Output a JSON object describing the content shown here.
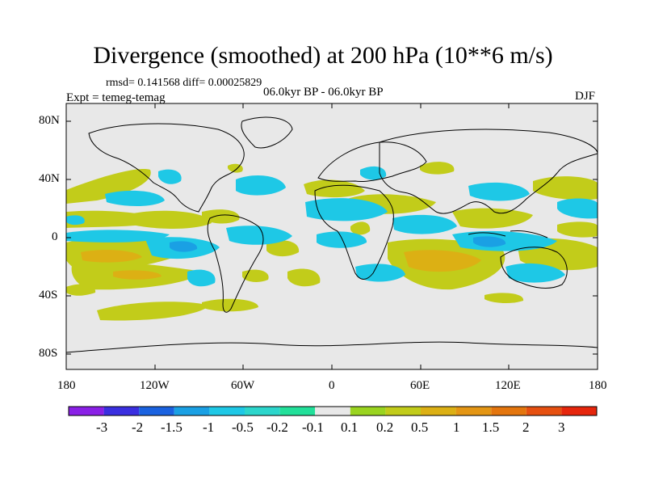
{
  "title": "Divergence (smoothed) at 200 hPa (10**6 m/s)",
  "stats": "rmsd= 0.141568 diff= 0.00025829",
  "experiment": "Expt = temeg-temag",
  "period": "06.0kyr BP - 06.0kyr BP",
  "season": "DJF",
  "map": {
    "lat_ticks": [
      "80N",
      "40N",
      "0",
      "40S",
      "80S"
    ],
    "lon_ticks": [
      "180",
      "120W",
      "60W",
      "0",
      "60E",
      "120E",
      "180"
    ],
    "background_color": "#e8e8e8"
  },
  "colorbar": {
    "colors": [
      "#8a20e6",
      "#3a2fe0",
      "#1a62e0",
      "#1aa0e4",
      "#1ec8e6",
      "#2cd6cc",
      "#22e09a",
      "#e8e8e8",
      "#9ad420",
      "#c2cc1a",
      "#dcb014",
      "#e49614",
      "#e4760e",
      "#e65010",
      "#e6260c"
    ],
    "labels": [
      "-3",
      "-2",
      "-1.5",
      "-1",
      "-0.5",
      "-0.2",
      "-0.1",
      "0.1",
      "0.2",
      "0.5",
      "1",
      "1.5",
      "2",
      "3"
    ]
  }
}
